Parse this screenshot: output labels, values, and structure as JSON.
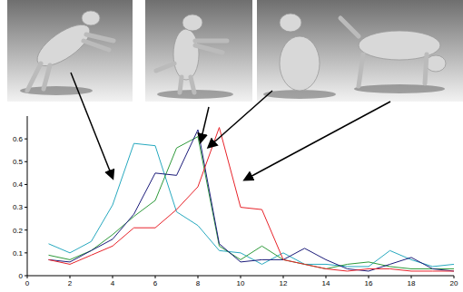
{
  "chart_data": {
    "type": "line",
    "x": [
      1,
      2,
      3,
      4,
      5,
      6,
      7,
      8,
      9,
      10,
      11,
      12,
      13,
      14,
      15,
      16,
      17,
      18,
      19,
      20
    ],
    "series": [
      {
        "color": "#27a9bf",
        "values": [
          0.14,
          0.1,
          0.15,
          0.31,
          0.58,
          0.57,
          0.28,
          0.22,
          0.11,
          0.1,
          0.05,
          0.1,
          0.05,
          0.05,
          0.04,
          0.04,
          0.11,
          0.07,
          0.04,
          0.05
        ]
      },
      {
        "color": "#2e9a3a",
        "values": [
          0.09,
          0.07,
          0.11,
          0.18,
          0.26,
          0.33,
          0.56,
          0.61,
          0.13,
          0.07,
          0.13,
          0.07,
          0.05,
          0.03,
          0.05,
          0.06,
          0.04,
          0.03,
          0.03,
          0.03
        ]
      },
      {
        "color": "#1c1c7a",
        "values": [
          0.07,
          0.06,
          0.11,
          0.16,
          0.27,
          0.45,
          0.44,
          0.64,
          0.14,
          0.06,
          0.07,
          0.07,
          0.12,
          0.07,
          0.03,
          0.02,
          0.05,
          0.08,
          0.03,
          0.02
        ]
      },
      {
        "color": "#e8232a",
        "values": [
          0.07,
          0.05,
          0.09,
          0.13,
          0.21,
          0.21,
          0.29,
          0.39,
          0.65,
          0.3,
          0.29,
          0.07,
          0.05,
          0.03,
          0.02,
          0.03,
          0.03,
          0.02,
          0.02,
          0.02
        ]
      }
    ],
    "xlim": [
      0,
      20
    ],
    "xticks": [
      0,
      2,
      4,
      6,
      8,
      10,
      12,
      14,
      16,
      18,
      20
    ],
    "ylim": [
      0,
      0.7
    ],
    "yticks": [
      0,
      0.1,
      0.2,
      0.3,
      0.4,
      0.5,
      0.6
    ]
  }
}
